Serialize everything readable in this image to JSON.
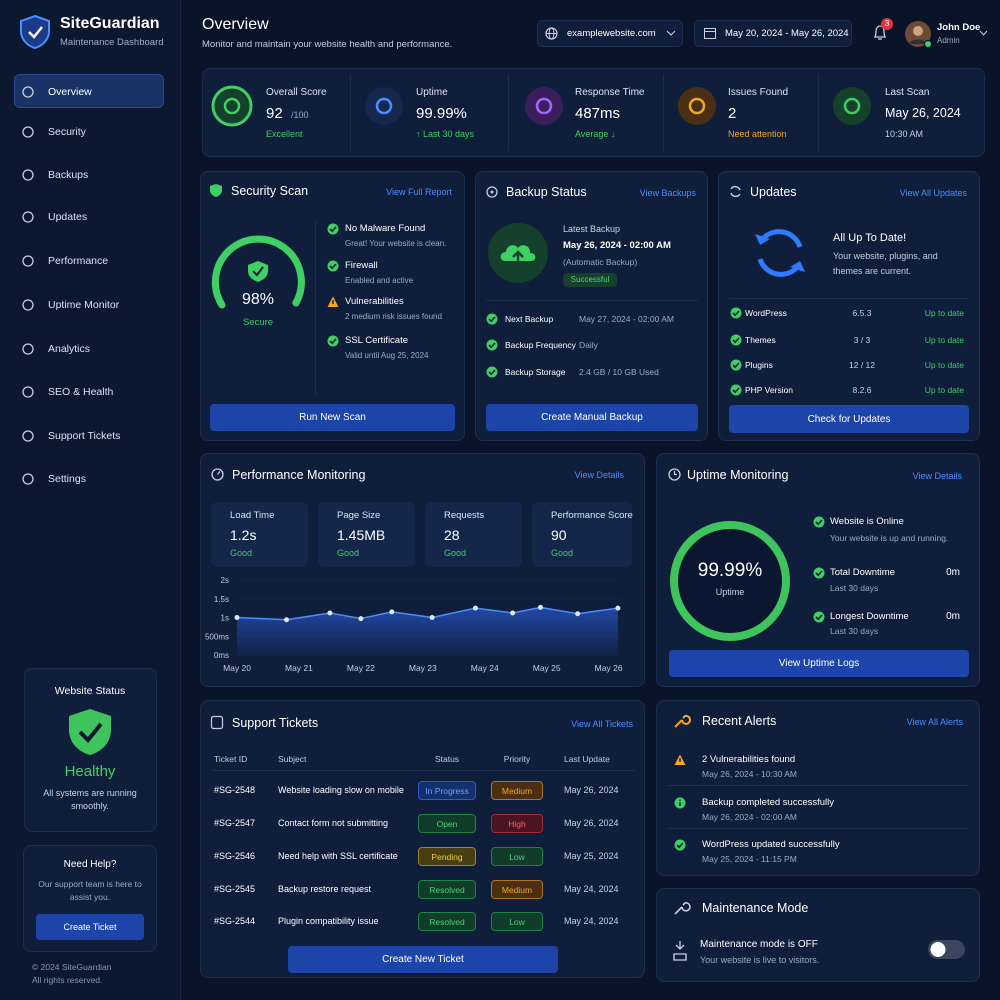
{
  "brand": {
    "name": "SiteGuardian",
    "subtitle": "Maintenance Dashboard"
  },
  "nav": [
    "Overview",
    "Security",
    "Backups",
    "Updates",
    "Performance",
    "Uptime Monitor",
    "Analytics",
    "SEO & Health",
    "Support Tickets",
    "Settings"
  ],
  "website_status": {
    "title": "Website Status",
    "status": "Healthy",
    "text": "All systems are running smoothly."
  },
  "help": {
    "title": "Need Help?",
    "text": "Our support team is here to assist you.",
    "button": "Create Ticket"
  },
  "footer": [
    "© 2024 SiteGuardian",
    "All rights reserved."
  ],
  "header": {
    "title": "Overview",
    "subtitle": "Monitor and maintain your website health and performance.",
    "site": "examplewebsite.com",
    "date_range": "May 20, 2024 - May 26, 2024",
    "notifications": "3",
    "user": "John Doe",
    "role": "Admin"
  },
  "stats": [
    {
      "label": "Overall Score",
      "value": "92",
      "unit": "/100",
      "note": "Excellent"
    },
    {
      "label": "Uptime",
      "value": "99.99%",
      "note": "↑ Last 30 days"
    },
    {
      "label": "Response Time",
      "value": "487ms",
      "note": "Average ↓"
    },
    {
      "label": "Issues Found",
      "value": "2",
      "note": "Need attention"
    },
    {
      "label": "Last Scan",
      "value": "May 26, 2024",
      "note": "10:30 AM"
    }
  ],
  "security_scan": {
    "title": "Security Scan",
    "link": "View Full Report",
    "score": "98%",
    "score_label": "Secure",
    "items": [
      {
        "title": "No Malware Found",
        "text": "Great! Your website is clean."
      },
      {
        "title": "Firewall",
        "text": "Enabled and active"
      },
      {
        "title": "Vulnerabilities",
        "text": "2 medium risk issues found"
      },
      {
        "title": "SSL Certificate",
        "text": "Valid until Aug 25, 2024"
      }
    ],
    "button": "Run New Scan"
  },
  "backup": {
    "title": "Backup Status",
    "link": "View Backups",
    "latest_label": "Latest Backup",
    "latest_date": "May 26, 2024 - 02:00 AM",
    "latest_type": "(Automatic Backup)",
    "badge": "Successful",
    "rows": [
      [
        "Next Backup",
        "May 27, 2024 - 02:00 AM"
      ],
      [
        "Backup Frequency",
        "Daily"
      ],
      [
        "Backup Storage",
        "2.4 GB / 10 GB Used"
      ]
    ],
    "button": "Create Manual Backup"
  },
  "updates": {
    "title": "Updates",
    "link": "View All Updates",
    "headline": "All Up To Date!",
    "text": "Your website, plugins, and themes are current.",
    "rows": [
      [
        "WordPress",
        "6.5.3",
        "Up to date"
      ],
      [
        "Themes",
        "3 / 3",
        "Up to date"
      ],
      [
        "Plugins",
        "12 / 12",
        "Up to date"
      ],
      [
        "PHP Version",
        "8.2.6",
        "Up to date"
      ]
    ],
    "button": "Check for Updates"
  },
  "performance": {
    "title": "Performance Monitoring",
    "link": "View Details",
    "metrics": [
      {
        "label": "Load Time",
        "value": "1.2s",
        "note": "Good"
      },
      {
        "label": "Page Size",
        "value": "1.45MB",
        "note": "Good"
      },
      {
        "label": "Requests",
        "value": "28",
        "note": "Good"
      },
      {
        "label": "Performance Score",
        "value": "90",
        "note": "Good"
      }
    ],
    "chart_data": {
      "type": "line",
      "x": [
        0,
        0.8,
        1.5,
        2,
        2.5,
        3.15,
        3.85,
        4.45,
        4.9,
        5.5,
        6.15
      ],
      "values": [
        1.0,
        0.94,
        1.12,
        0.97,
        1.15,
        1.0,
        1.25,
        1.12,
        1.27,
        1.1,
        1.25
      ],
      "color": "#4f8cff",
      "xlim": [
        0,
        6.2
      ],
      "xticks": [
        {
          "value": 0,
          "label": "May 20"
        },
        {
          "value": 1,
          "label": "May 21"
        },
        {
          "value": 2,
          "label": "May 22"
        },
        {
          "value": 3,
          "label": "May 23"
        },
        {
          "value": 4,
          "label": "May 24"
        },
        {
          "value": 5,
          "label": "May 25"
        },
        {
          "value": 6,
          "label": "May 26"
        }
      ],
      "ylim": [
        0,
        2
      ],
      "yticks": [
        {
          "value": 0,
          "label": "0ms"
        },
        {
          "value": 0.5,
          "label": "500ms"
        },
        {
          "value": 1,
          "label": "1s"
        },
        {
          "value": 1.5,
          "label": "1.5s"
        },
        {
          "value": 2,
          "label": "2s"
        }
      ],
      "grid": true
    }
  },
  "uptime": {
    "title": "Uptime Monitoring",
    "link": "View Details",
    "value": "99.99%",
    "label": "Uptime",
    "items": [
      {
        "title": "Website is Online",
        "text": "Your website is up and running."
      },
      {
        "title": "Total Downtime",
        "value": "0m",
        "text": "Last 30 days"
      },
      {
        "title": "Longest Downtime",
        "value": "0m",
        "text": "Last 30 days"
      }
    ],
    "button": "View Uptime Logs"
  },
  "tickets": {
    "title": "Support Tickets",
    "link": "View All Tickets",
    "columns": [
      "Ticket ID",
      "Subject",
      "Status",
      "Priority",
      "Last Update"
    ],
    "rows": [
      [
        "#SG-2548",
        "Website loading slow on mobile",
        "In Progress",
        "Medium",
        "May 26, 2024"
      ],
      [
        "#SG-2547",
        "Contact form not submitting",
        "Open",
        "High",
        "May 26, 2024"
      ],
      [
        "#SG-2546",
        "Need help with SSL certificate",
        "Pending",
        "Low",
        "May 25, 2024"
      ],
      [
        "#SG-2545",
        "Backup restore request",
        "Resolved",
        "Medium",
        "May 24, 2024"
      ],
      [
        "#SG-2544",
        "Plugin compatibility issue",
        "Resolved",
        "Low",
        "May 24, 2024"
      ]
    ],
    "button": "Create New Ticket"
  },
  "alerts": {
    "title": "Recent Alerts",
    "link": "View All Alerts",
    "items": [
      {
        "text": "2 Vulnerabilities found",
        "time": "May 26, 2024 - 10:30 AM"
      },
      {
        "text": "Backup completed successfully",
        "time": "May 26, 2024 - 02:00 AM"
      },
      {
        "text": "WordPress updated successfully",
        "time": "May 25, 2024 - 11:15 PM"
      }
    ]
  },
  "maintenance": {
    "title": "Maintenance Mode",
    "status": "Maintenance mode is OFF",
    "text": "Your website is live to visitors."
  }
}
